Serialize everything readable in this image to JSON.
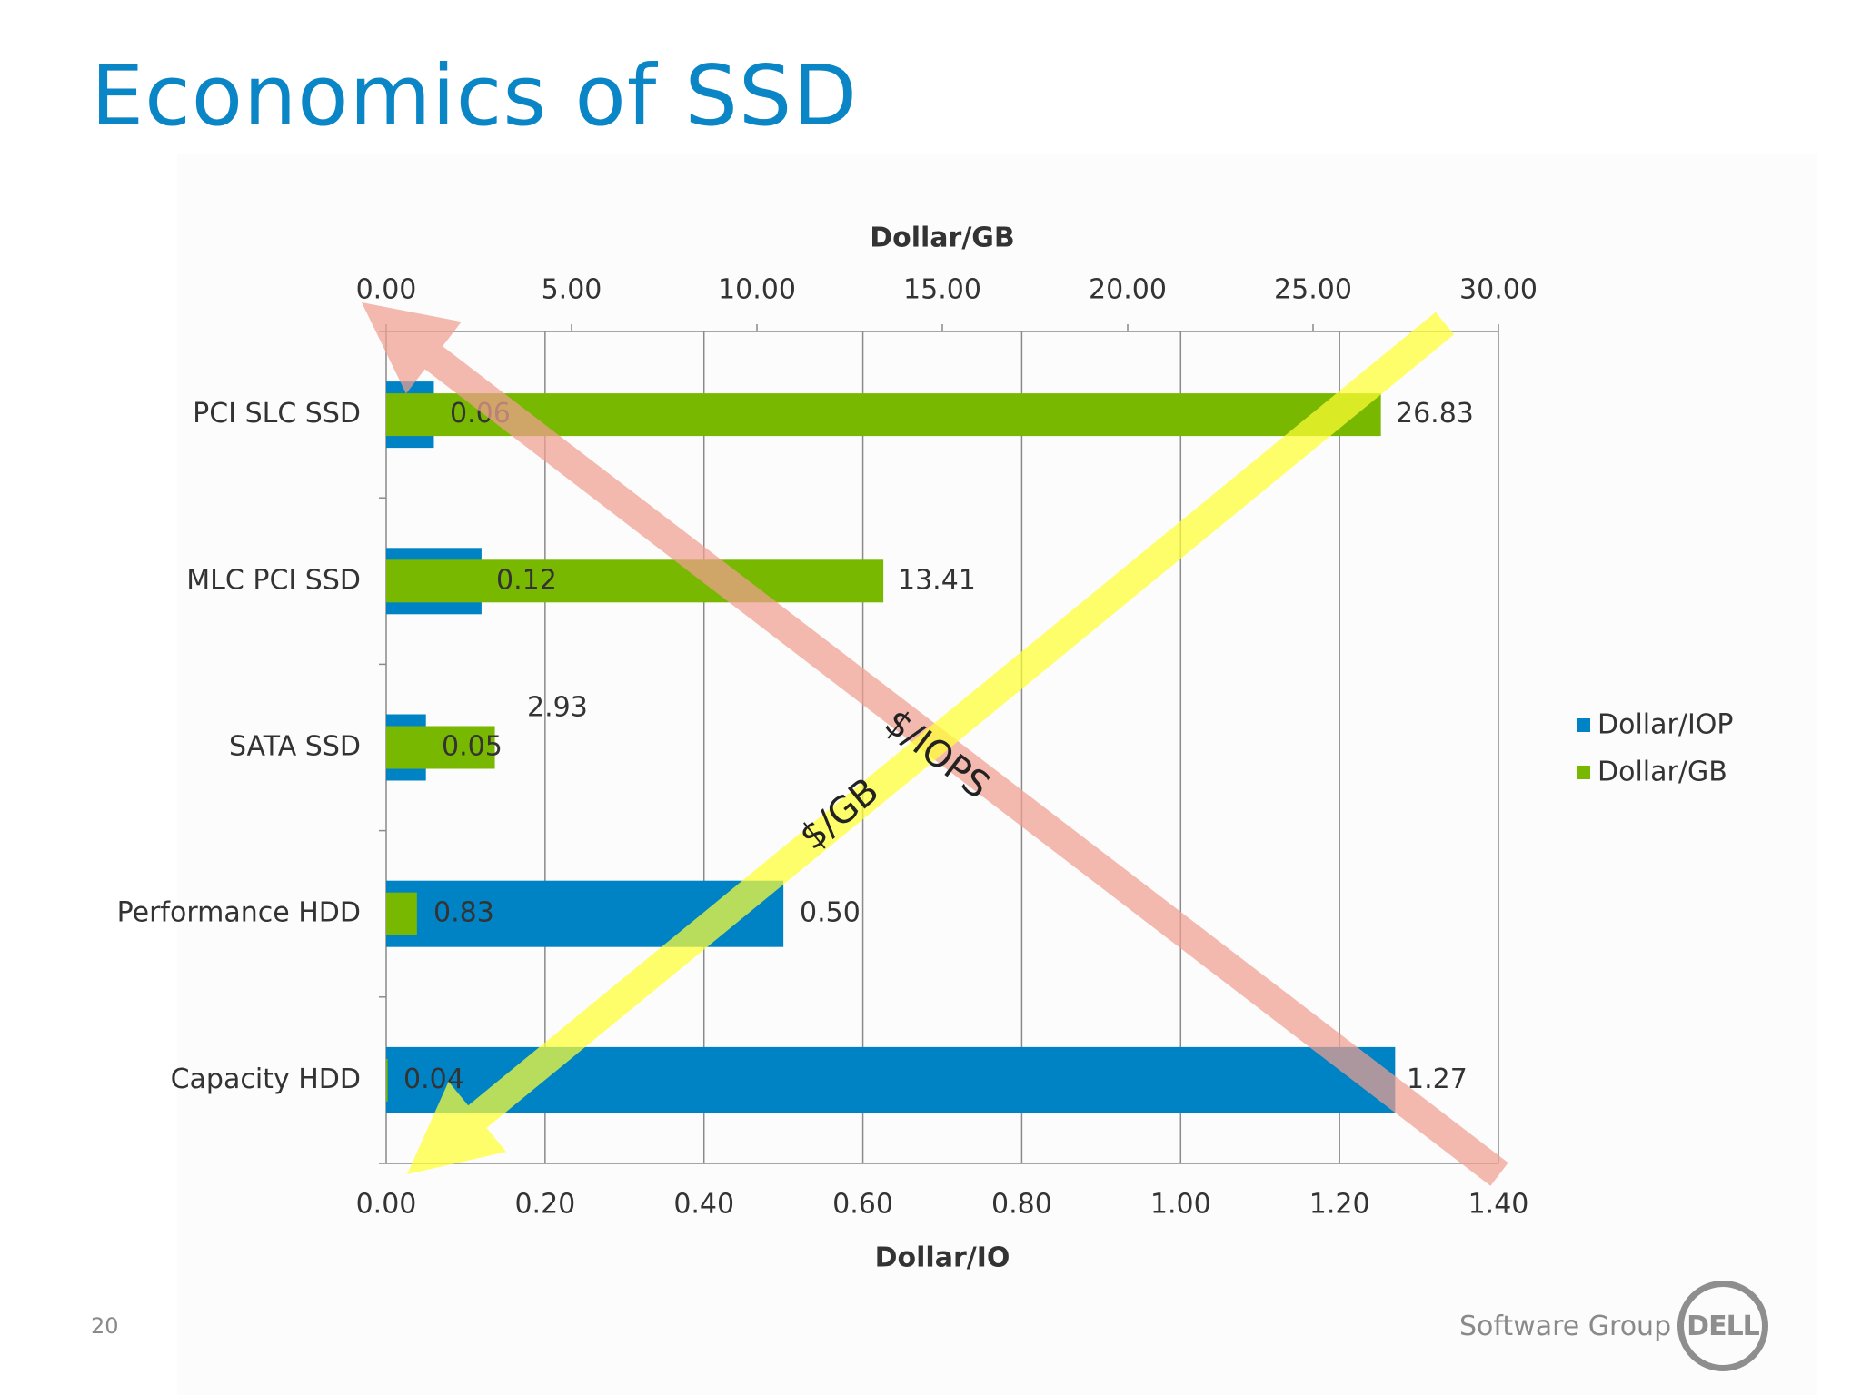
{
  "slide": {
    "title": "Economics of SSD",
    "page_number": "20",
    "footer_text": "Software Group",
    "logo_text": "DELL"
  },
  "colors": {
    "title": "#0a85c5",
    "dollar_iop": "#0083c4",
    "dollar_gb": "#79b800",
    "arrow_iops": "#f0a090",
    "arrow_gb": "#ffff33"
  },
  "chart_data": {
    "type": "bar",
    "orientation": "horizontal",
    "categories": [
      "PCI SLC SSD",
      "MLC PCI SSD",
      "SATA SSD",
      "Performance HDD",
      "Capacity HDD"
    ],
    "series": [
      {
        "name": "Dollar/IOP",
        "axis": "bottom",
        "values": [
          0.06,
          0.12,
          0.05,
          0.5,
          1.27
        ],
        "labels": [
          "0.06",
          "0.12",
          "0.05",
          "0.50",
          "1.27"
        ]
      },
      {
        "name": "Dollar/GB",
        "axis": "top",
        "values": [
          26.83,
          13.41,
          2.93,
          0.83,
          0.04
        ],
        "labels": [
          "26.83",
          "13.41",
          "2.93",
          "0.83",
          "0.04"
        ]
      }
    ],
    "top_axis": {
      "label": "Dollar/GB",
      "range": [
        0,
        30
      ],
      "ticks": [
        "0.00",
        "5.00",
        "10.00",
        "15.00",
        "20.00",
        "25.00",
        "30.00"
      ]
    },
    "bottom_axis": {
      "label": "Dollar/IO",
      "range": [
        0,
        1.4
      ],
      "ticks": [
        "0.00",
        "0.20",
        "0.40",
        "0.60",
        "0.80",
        "1.00",
        "1.20",
        "1.40"
      ]
    },
    "legend": {
      "position": "right",
      "entries": [
        "Dollar/IOP",
        "Dollar/GB"
      ]
    },
    "grid": true,
    "annotations": [
      {
        "text": "$/IOPS",
        "kind": "arrow",
        "direction": "toward top-left"
      },
      {
        "text": "$/GB",
        "kind": "arrow",
        "direction": "toward bottom-left"
      }
    ]
  }
}
